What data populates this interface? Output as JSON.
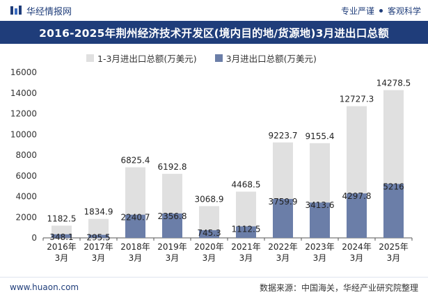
{
  "header": {
    "brand": "华经情报网",
    "tagline_left": "专业严谨",
    "tagline_right": "客观科学"
  },
  "footer": {
    "url": "www.huaon.com",
    "source": "数据来源：中国海关，华经产业研究院整理"
  },
  "colors": {
    "header_bg": "#1f3d7a",
    "series1": "#e0e0e0",
    "series2": "#6b7ea8"
  },
  "chart_data": {
    "type": "bar",
    "title": "2016-2025年荆州经济技术开发区(境内目的地/货源地)3月进出口总额",
    "xlabel": "",
    "ylabel": "",
    "ylim": [
      0,
      16000
    ],
    "yticks": [
      0,
      2000,
      4000,
      6000,
      8000,
      10000,
      12000,
      14000,
      16000
    ],
    "grid": false,
    "legend": "top-left",
    "categories": [
      "2016年\n3月",
      "2017年\n3月",
      "2018年\n3月",
      "2019年\n3月",
      "2020年\n3月",
      "2021年\n3月",
      "2022年\n3月",
      "2023年\n3月",
      "2024年\n3月",
      "2025年\n3月"
    ],
    "series": [
      {
        "name": "1-3月进出口总额(万美元)",
        "values": [
          1182.5,
          1834.9,
          6825.4,
          6192.8,
          3068.9,
          4468.5,
          9223.7,
          9155.4,
          12727.3,
          14278.5
        ]
      },
      {
        "name": "3月进出口总额(万美元)",
        "values": [
          348.1,
          295.5,
          2240.7,
          2356.8,
          745.3,
          1112.5,
          3759.9,
          3413.6,
          4297.8,
          5216
        ]
      }
    ]
  }
}
